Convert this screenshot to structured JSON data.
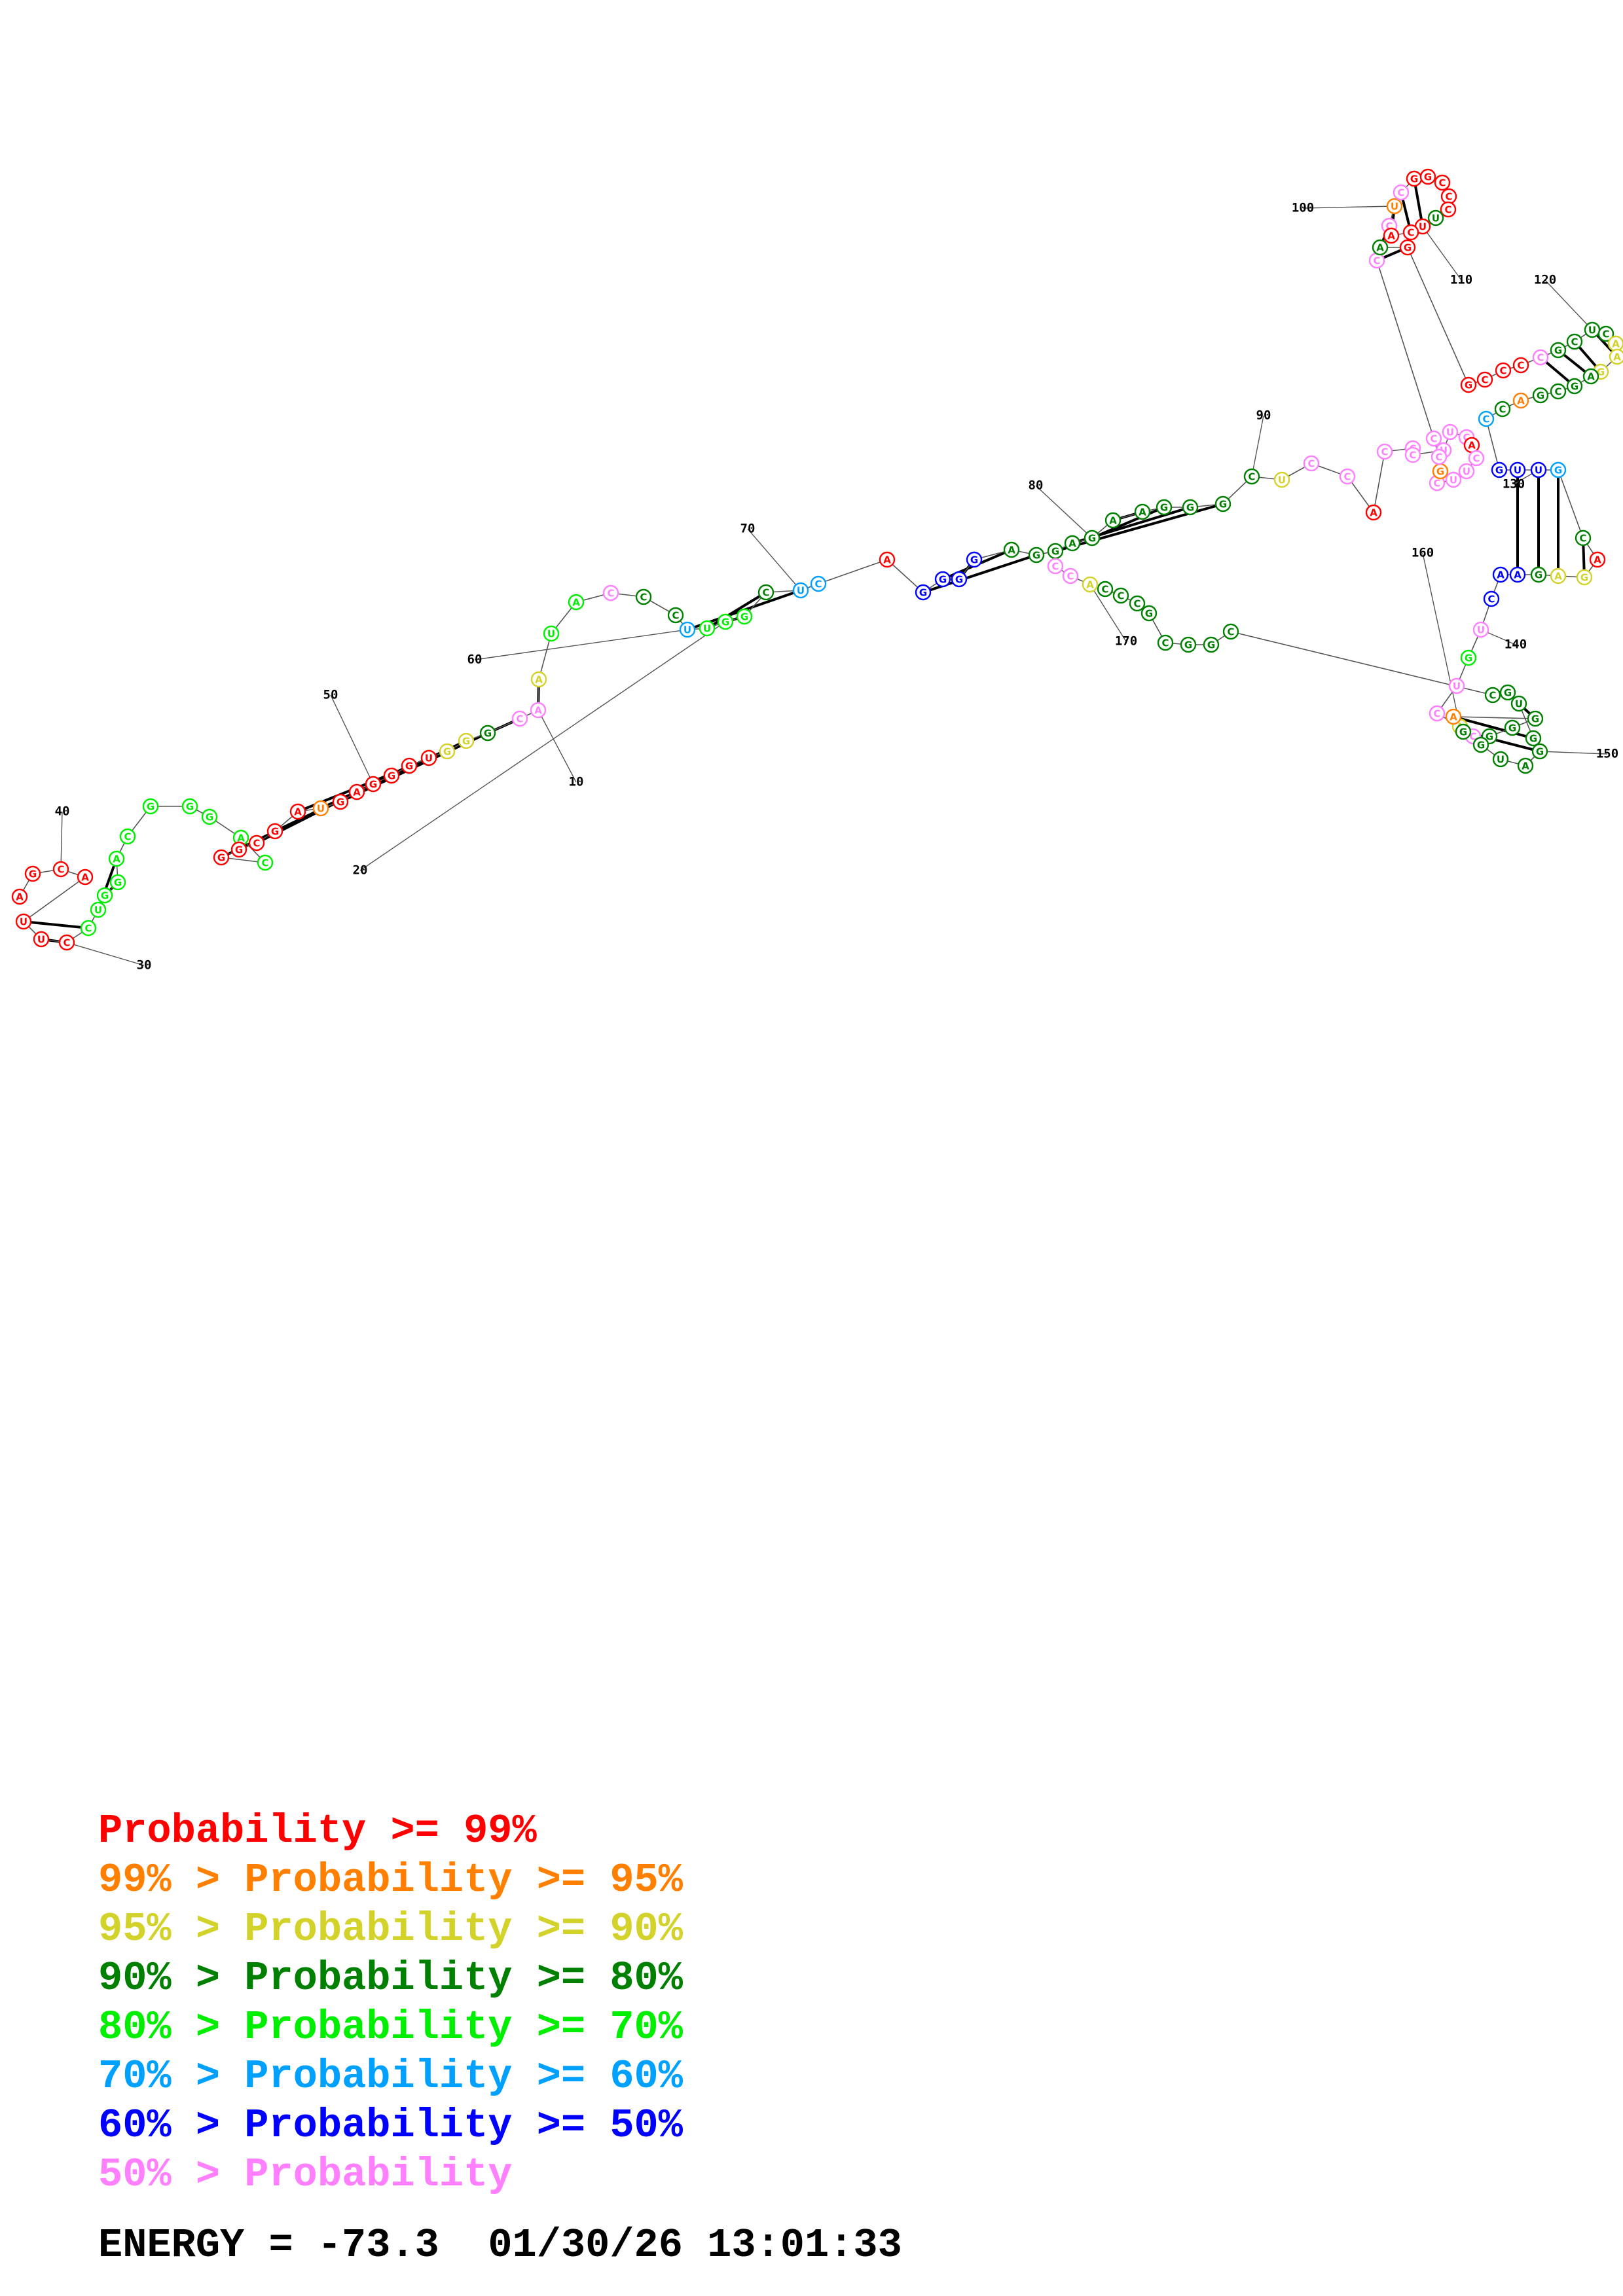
{
  "legend": {
    "rows": [
      {
        "prefix": "",
        "text": "Probability >= 99%",
        "color": "#ff0000"
      },
      {
        "prefix": "99% > ",
        "text": "Probability >= 95%",
        "color": "#ff8000"
      },
      {
        "prefix": "95% > ",
        "text": "Probability >= 90%",
        "color": "#d2d22a"
      },
      {
        "prefix": "90% > ",
        "text": "Probability >= 80%",
        "color": "#008000"
      },
      {
        "prefix": "80% > ",
        "text": "Probability >= 70%",
        "color": "#00ee00"
      },
      {
        "prefix": "70% > ",
        "text": "Probability >= 60%",
        "color": "#00a0ff"
      },
      {
        "prefix": "60% > ",
        "text": "Probability >= 50%",
        "color": "#0000ff"
      },
      {
        "prefix": "50% > ",
        "text": "Probability",
        "color": "#ff80ff"
      }
    ]
  },
  "footer": {
    "energy_label": "ENERGY = -73.3",
    "timestamp": "01/30/26 13:01:33"
  },
  "structure": {
    "position_labels": [
      "10",
      "20",
      "30",
      "40",
      "50",
      "60",
      "70",
      "80",
      "90",
      "100",
      "110",
      "120",
      "130",
      "140",
      "150",
      "160",
      "170"
    ],
    "nucleotides": [
      {
        "b": "A",
        "p": "r"
      },
      {
        "b": "G",
        "p": "r"
      },
      {
        "b": "C",
        "p": "r"
      },
      {
        "b": "A",
        "p": "r"
      },
      {
        "b": "U",
        "p": "r"
      },
      {
        "b": "U",
        "p": "r"
      },
      {
        "b": "C",
        "p": "r"
      },
      {
        "b": "C",
        "p": "g"
      },
      {
        "b": "U",
        "p": "g"
      },
      {
        "b": "G",
        "p": "g"
      },
      {
        "b": "G",
        "p": "g"
      },
      {
        "b": "A",
        "p": "g"
      },
      {
        "b": "C",
        "p": "g"
      },
      {
        "b": "G",
        "p": "g"
      },
      {
        "b": "G",
        "p": "g"
      },
      {
        "b": "G",
        "p": "g"
      },
      {
        "b": "A",
        "p": "g"
      },
      {
        "b": "C",
        "p": "g"
      },
      {
        "b": "G",
        "p": "r"
      },
      {
        "b": "G",
        "p": "r"
      },
      {
        "b": "C",
        "p": "r"
      },
      {
        "b": "G",
        "p": "r"
      },
      {
        "b": "A",
        "p": "r"
      },
      {
        "b": "U",
        "p": "o"
      },
      {
        "b": "G",
        "p": "r"
      },
      {
        "b": "A",
        "p": "r"
      },
      {
        "b": "G",
        "p": "r"
      },
      {
        "b": "G",
        "p": "r"
      },
      {
        "b": "G",
        "p": "r"
      },
      {
        "b": "U",
        "p": "r"
      },
      {
        "b": "G",
        "p": "y"
      },
      {
        "b": "G",
        "p": "y"
      },
      {
        "b": "G",
        "p": "d"
      },
      {
        "b": "C",
        "p": "m"
      },
      {
        "b": "A",
        "p": "m"
      },
      {
        "b": "A",
        "p": "y"
      },
      {
        "b": "U",
        "p": "g"
      },
      {
        "b": "A",
        "p": "g"
      },
      {
        "b": "C",
        "p": "m"
      },
      {
        "b": "C",
        "p": "d"
      },
      {
        "b": "C",
        "p": "d"
      },
      {
        "b": "U",
        "p": "c"
      },
      {
        "b": "U",
        "p": "g"
      },
      {
        "b": "G",
        "p": "g"
      },
      {
        "b": "G",
        "p": "g"
      },
      {
        "b": "C",
        "p": "d"
      },
      {
        "b": "U",
        "p": "c"
      },
      {
        "b": "C",
        "p": "c"
      },
      {
        "b": "A",
        "p": "r"
      },
      {
        "b": "G",
        "p": "b"
      },
      {
        "b": "G",
        "p": "b"
      },
      {
        "b": "G",
        "p": "b"
      },
      {
        "b": "G",
        "p": "b"
      },
      {
        "b": "A",
        "p": "d"
      },
      {
        "b": "G",
        "p": "d"
      },
      {
        "b": "G",
        "p": "d"
      },
      {
        "b": "A",
        "p": "d"
      },
      {
        "b": "G",
        "p": "d"
      },
      {
        "b": "A",
        "p": "d"
      },
      {
        "b": "A",
        "p": "d"
      },
      {
        "b": "G",
        "p": "d"
      },
      {
        "b": "G",
        "p": "d"
      },
      {
        "b": "G",
        "p": "d"
      },
      {
        "b": "C",
        "p": "d"
      },
      {
        "b": "U",
        "p": "y"
      },
      {
        "b": "C",
        "p": "m"
      },
      {
        "b": "C",
        "p": "m"
      },
      {
        "b": "A",
        "p": "r"
      },
      {
        "b": "C",
        "p": "m"
      },
      {
        "b": "C",
        "p": "m"
      },
      {
        "b": "C",
        "p": "m"
      },
      {
        "b": "U",
        "p": "m"
      },
      {
        "b": "U",
        "p": "m"
      },
      {
        "b": "C",
        "p": "m"
      },
      {
        "b": "A",
        "p": "r"
      },
      {
        "b": "C",
        "p": "m"
      },
      {
        "b": "U",
        "p": "m"
      },
      {
        "b": "U",
        "p": "m"
      },
      {
        "b": "C",
        "p": "m"
      },
      {
        "b": "G",
        "p": "o"
      },
      {
        "b": "C",
        "p": "m"
      },
      {
        "b": "C",
        "p": "m"
      },
      {
        "b": "C",
        "p": "m"
      },
      {
        "b": "C",
        "p": "m"
      },
      {
        "b": "U",
        "p": "o"
      },
      {
        "b": "C",
        "p": "m"
      },
      {
        "b": "G",
        "p": "r"
      },
      {
        "b": "G",
        "p": "r"
      },
      {
        "b": "C",
        "p": "r"
      },
      {
        "b": "C",
        "p": "r"
      },
      {
        "b": "C",
        "p": "r"
      },
      {
        "b": "U",
        "p": "d"
      },
      {
        "b": "U",
        "p": "r"
      },
      {
        "b": "C",
        "p": "r"
      },
      {
        "b": "A",
        "p": "r"
      },
      {
        "b": "A",
        "p": "d"
      },
      {
        "b": "G",
        "p": "r"
      },
      {
        "b": "G",
        "p": "r"
      },
      {
        "b": "C",
        "p": "r"
      },
      {
        "b": "C",
        "p": "r"
      },
      {
        "b": "C",
        "p": "r"
      },
      {
        "b": "C",
        "p": "m"
      },
      {
        "b": "G",
        "p": "d"
      },
      {
        "b": "C",
        "p": "d"
      },
      {
        "b": "U",
        "p": "d"
      },
      {
        "b": "C",
        "p": "d"
      },
      {
        "b": "A",
        "p": "y"
      },
      {
        "b": "A",
        "p": "y"
      },
      {
        "b": "G",
        "p": "y"
      },
      {
        "b": "A",
        "p": "d"
      },
      {
        "b": "G",
        "p": "d"
      },
      {
        "b": "C",
        "p": "d"
      },
      {
        "b": "G",
        "p": "d"
      },
      {
        "b": "A",
        "p": "o"
      },
      {
        "b": "C",
        "p": "d"
      },
      {
        "b": "C",
        "p": "c"
      },
      {
        "b": "G",
        "p": "b"
      },
      {
        "b": "U",
        "p": "b"
      },
      {
        "b": "U",
        "p": "b"
      },
      {
        "b": "G",
        "p": "c"
      },
      {
        "b": "C",
        "p": "d"
      },
      {
        "b": "A",
        "p": "r"
      },
      {
        "b": "G",
        "p": "y"
      },
      {
        "b": "A",
        "p": "y"
      },
      {
        "b": "G",
        "p": "d"
      },
      {
        "b": "A",
        "p": "b"
      },
      {
        "b": "A",
        "p": "b"
      },
      {
        "b": "C",
        "p": "b"
      },
      {
        "b": "U",
        "p": "m"
      },
      {
        "b": "G",
        "p": "g"
      },
      {
        "b": "U",
        "p": "m"
      },
      {
        "b": "C",
        "p": "m"
      },
      {
        "b": "C",
        "p": "m"
      },
      {
        "b": "A",
        "p": "y"
      },
      {
        "b": "C",
        "p": "m"
      },
      {
        "b": "G",
        "p": "d"
      },
      {
        "b": "G",
        "p": "d"
      },
      {
        "b": "G",
        "p": "d"
      },
      {
        "b": "A",
        "p": "o"
      },
      {
        "b": "G",
        "p": "d"
      },
      {
        "b": "G",
        "p": "d"
      },
      {
        "b": "U",
        "p": "d"
      },
      {
        "b": "A",
        "p": "d"
      },
      {
        "b": "G",
        "p": "d"
      },
      {
        "b": "G",
        "p": "d"
      },
      {
        "b": "U",
        "p": "d"
      },
      {
        "b": "G",
        "p": "d"
      },
      {
        "b": "C",
        "p": "d"
      },
      {
        "b": "C",
        "p": "d"
      },
      {
        "b": "G",
        "p": "d"
      },
      {
        "b": "G",
        "p": "d"
      },
      {
        "b": "C",
        "p": "d"
      },
      {
        "b": "G",
        "p": "d"
      },
      {
        "b": "C",
        "p": "d"
      },
      {
        "b": "C",
        "p": "d"
      },
      {
        "b": "C",
        "p": "d"
      },
      {
        "b": "A",
        "p": "y"
      },
      {
        "b": "C",
        "p": "m"
      },
      {
        "b": "C",
        "p": "m"
      }
    ]
  }
}
